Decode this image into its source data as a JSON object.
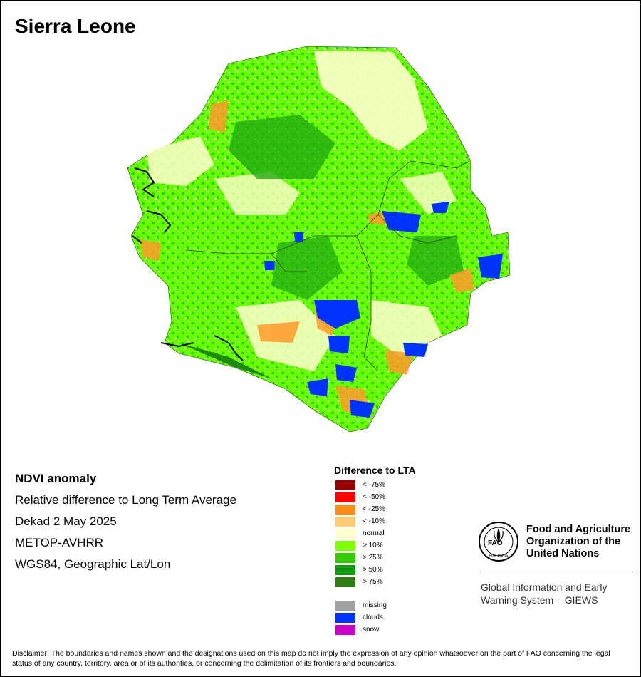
{
  "map": {
    "title": "Sierra Leone"
  },
  "info": {
    "heading": "NDVI anomaly",
    "subtitle": "Relative difference to Long Term Average",
    "period": "Dekad 2 May 2025",
    "sensor": "METOP-AVHRR",
    "projection": "WGS84, Geographic Lat/Lon"
  },
  "legend": {
    "title": "Difference to LTA",
    "items": [
      {
        "label": "< -75%",
        "color": "#990000"
      },
      {
        "label": "< -50%",
        "color": "#ff0000"
      },
      {
        "label": "< -25%",
        "color": "#ff8c1a"
      },
      {
        "label": "< -10%",
        "color": "#ffcc73"
      },
      {
        "label": "normal",
        "color": "#ffffcc"
      },
      {
        "label": "> 10%",
        "color": "#7fff00"
      },
      {
        "label": "> 25%",
        "color": "#33cc00"
      },
      {
        "label": "> 50%",
        "color": "#119911"
      },
      {
        "label": "> 75%",
        "color": "#2e7d12"
      }
    ],
    "extra": [
      {
        "label": "missing",
        "color": "#a0a0a0"
      },
      {
        "label": "clouds",
        "color": "#0033ff"
      },
      {
        "label": "snow",
        "color": "#cc00cc"
      }
    ]
  },
  "org": {
    "logo_text": "FAO",
    "logo_motto": "FIAT PANIS",
    "name_line1": "Food and Agriculture",
    "name_line2": "Organization of the",
    "name_line3": "United Nations",
    "giews_line1": "Global Information and Early",
    "giews_line2": "Warning System – GIEWS"
  },
  "disclaimer": "Disclaimer: The boundaries and names shown and the designations used on this map do not imply the expression of any opinion whatsoever on the part of FAO concerning the legal status of any country, territory, area or of its authorities, or concerning the delimitation of its frontiers and boundaries."
}
